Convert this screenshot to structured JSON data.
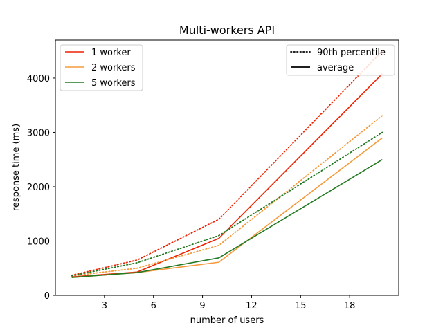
{
  "chart_data": {
    "type": "line",
    "title": "Multi-workers API",
    "xlabel": "number of users",
    "ylabel": "response time (ms)",
    "xlim": [
      0,
      21
    ],
    "ylim": [
      0,
      4700
    ],
    "xticks": [
      3,
      6,
      9,
      12,
      15,
      18
    ],
    "yticks": [
      0,
      1000,
      2000,
      3000,
      4000
    ],
    "grid": false,
    "x": [
      1,
      5,
      10,
      20
    ],
    "series": [
      {
        "name": "1 worker",
        "color": "#ee2200",
        "average": [
          340,
          430,
          1050,
          4080
        ],
        "p90": [
          370,
          650,
          1400,
          4500
        ]
      },
      {
        "name": "2 workers",
        "color": "#f59a3c",
        "average": [
          330,
          420,
          610,
          2900
        ],
        "p90": [
          360,
          500,
          920,
          3310
        ]
      },
      {
        "name": "5 workers",
        "color": "#237a22",
        "average": [
          330,
          420,
          690,
          2500
        ],
        "p90": [
          360,
          600,
          1100,
          3000
        ]
      }
    ],
    "legend_series": {
      "position": "top-left",
      "entries": [
        "1 worker",
        "2 workers",
        "5 workers"
      ]
    },
    "legend_style": {
      "position": "top-right",
      "entries": [
        {
          "label": "90th percentile",
          "style": "dotted"
        },
        {
          "label": "average",
          "style": "solid"
        }
      ]
    }
  }
}
